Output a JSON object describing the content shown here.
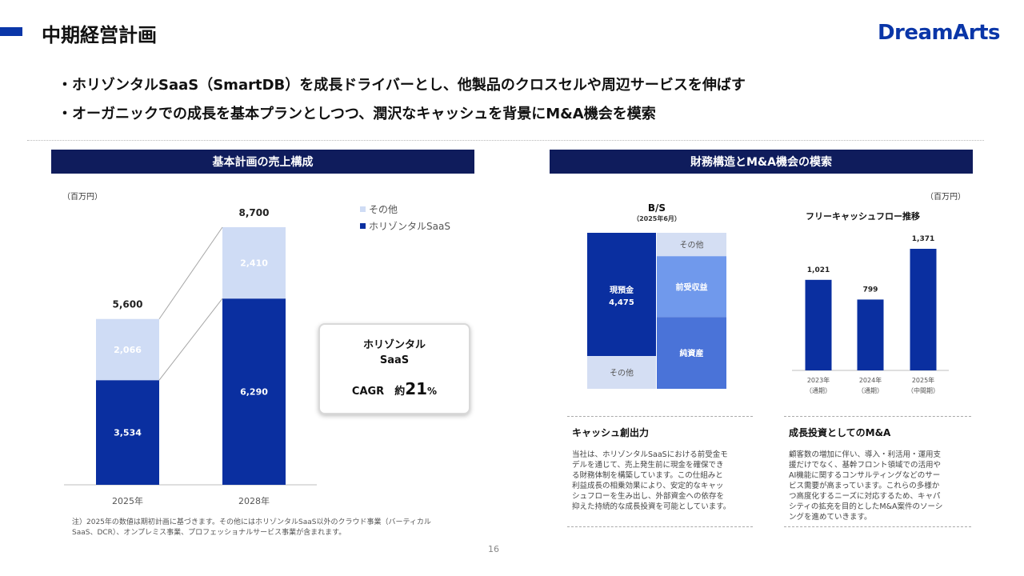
{
  "header": {
    "title": "中期経営計画",
    "logo_text": "DreamArts"
  },
  "bullets": [
    "・ホリゾンタルSaaS（SmartDB）を成長ドライバーとし、他製品のクロスセルや周辺サービスを伸ばす",
    "・オーガニックでの成長を基本プランとしつつ、潤沢なキャッシュを背景にM&A機会を模索"
  ],
  "left_section": {
    "title": "基本計画の売上構成",
    "unit": "（百万円）",
    "legend": [
      "その他",
      "ホリゾンタルSaaS"
    ],
    "callout": {
      "line1": "ホリゾンタル",
      "line2": "SaaS",
      "cagr_label": "CAGR　約",
      "cagr_value": "21",
      "cagr_unit": "%"
    },
    "note": "注）2025年の数値は期初計画に基づきます。その他にはホリゾンタルSaaS以外のクラウド事業（バーティカルSaaS、DCR）、オンプレミス事業、プロフェッショナルサービス事業が含まれます。"
  },
  "right_section": {
    "title": "財務構造とM&A機会の模索",
    "unit": "（百万円）",
    "bs": {
      "title": "B/S",
      "subtitle": "（2025年6月）",
      "assets": [
        {
          "label": "現預金",
          "value": "4,475",
          "share": 0.79
        },
        {
          "label": "その他",
          "value": "",
          "share": 0.21
        }
      ],
      "liabilities": [
        {
          "label": "その他",
          "share": 0.15
        },
        {
          "label": "前受収益",
          "share": 0.39
        },
        {
          "label": "純資産",
          "share": 0.46
        }
      ]
    },
    "cards": [
      {
        "heading": "キャッシュ創出力",
        "body": [
          "当社は、ホリゾンタルSaaSにおける前受金モ",
          "デルを通じて、売上発生前に現金を確保でき",
          "る財務体制を構築しています。この仕組みと",
          "利益成長の相乗効果により、安定的なキャッ",
          "シュフローを生み出し、外部資金への依存を",
          "抑えた持続的な成長投資を可能としています。"
        ]
      },
      {
        "heading": "成長投資としてのM&A",
        "body": [
          "顧客数の増加に伴い、導入・利活用・運用支",
          "援だけでなく、基幹フロント領域での活用や",
          "AI機能に関するコンサルティングなどのサー",
          "ビス需要が高まっています。これらの多様か",
          "つ高度化するニーズに対応するため、キャパ",
          "シティの拡充を目的としたM&A案件のソーシ",
          "ングを進めていきます。"
        ]
      }
    ]
  },
  "page_number": "16",
  "colors": {
    "dark_blue": "#0a2fa0",
    "light_blue": "#cfdcf5",
    "header_navy": "#0f1c5c",
    "bs_cash": "#0a2fa0",
    "bs_other": "#d4def3",
    "bs_deferred": "#7099ec",
    "bs_equity": "#4a73d8"
  },
  "chart_data": [
    {
      "type": "bar",
      "stacked": true,
      "categories": [
        "2025年",
        "2028年"
      ],
      "series": [
        {
          "name": "ホリゾンタルSaaS",
          "values": [
            3534,
            6290
          ],
          "labels": [
            "3,534",
            "6,290"
          ]
        },
        {
          "name": "その他",
          "values": [
            2066,
            2410
          ],
          "labels": [
            "2,066",
            "2,410"
          ]
        }
      ],
      "totals": [
        5600,
        8700
      ],
      "total_labels": [
        "5,600",
        "8,700"
      ],
      "ylim": [
        0,
        8700
      ],
      "ylabel": "（百万円）"
    },
    {
      "type": "bar",
      "title": "フリーキャッシュフロー推移",
      "categories": [
        "2023年（通期）",
        "2024年（通期）",
        "2025年（中間期）"
      ],
      "category_lines": [
        [
          "2023年",
          "（通期）"
        ],
        [
          "2024年",
          "（通期）"
        ],
        [
          "2025年",
          "（中間期）"
        ]
      ],
      "values": [
        1021,
        799,
        1371
      ],
      "labels": [
        "1,021",
        "799",
        "1,371"
      ],
      "ylim": [
        0,
        1371
      ]
    }
  ]
}
